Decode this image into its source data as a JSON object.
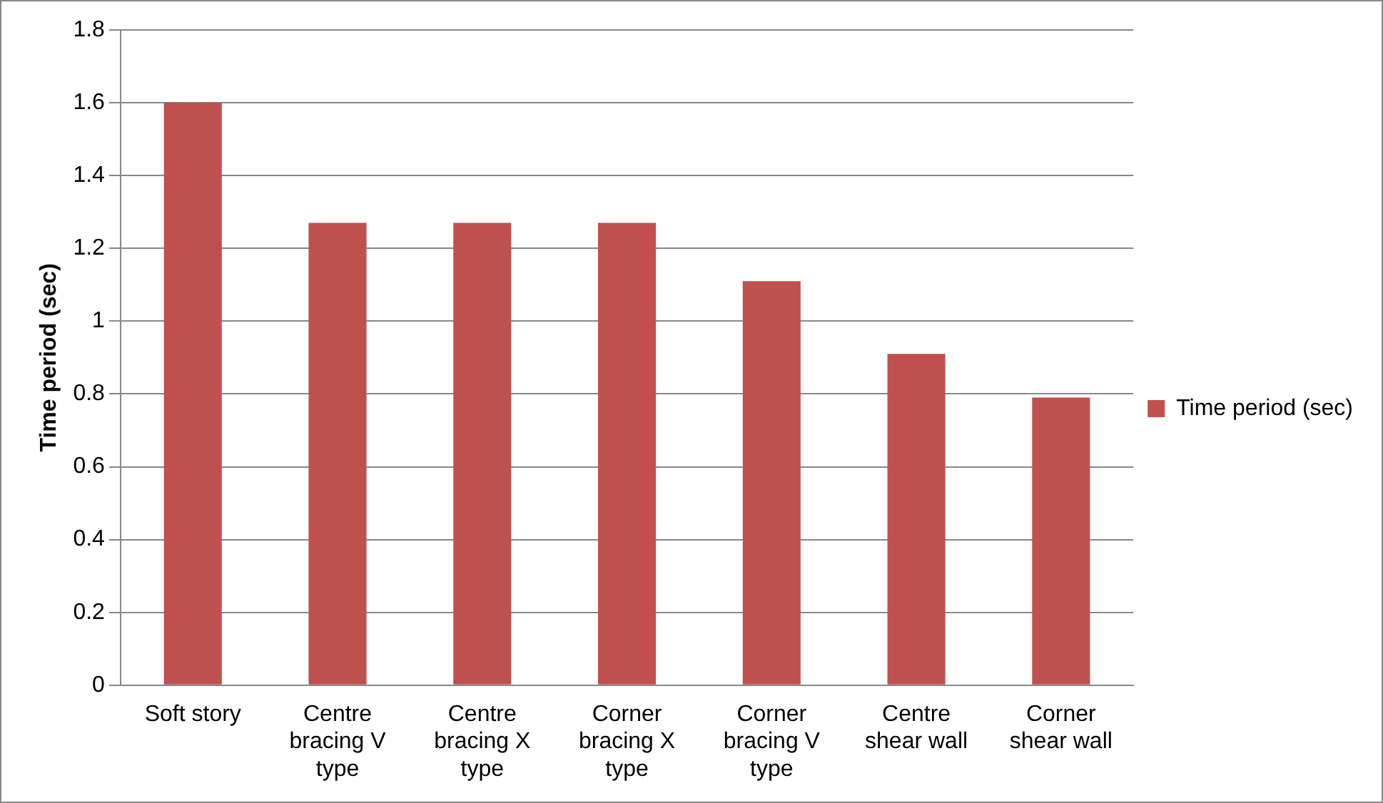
{
  "chart_data": {
    "type": "bar",
    "ylabel": "Time period (sec)",
    "categories": [
      "Soft story",
      "Centre bracing V type",
      "Centre bracing X type",
      "Corner bracing X type",
      "Corner bracing V type",
      "Centre shear wall",
      "Corner shear wall"
    ],
    "series": [
      {
        "name": "Time period (sec)",
        "color": "#c0504d",
        "values": [
          1.6,
          1.27,
          1.27,
          1.27,
          1.11,
          0.91,
          0.79
        ]
      }
    ],
    "ylim": [
      0,
      1.8
    ],
    "yticks": [
      0,
      0.2,
      0.4,
      0.6,
      0.8,
      1,
      1.2,
      1.4,
      1.6,
      1.8
    ],
    "grid": "y",
    "legend": "right"
  }
}
